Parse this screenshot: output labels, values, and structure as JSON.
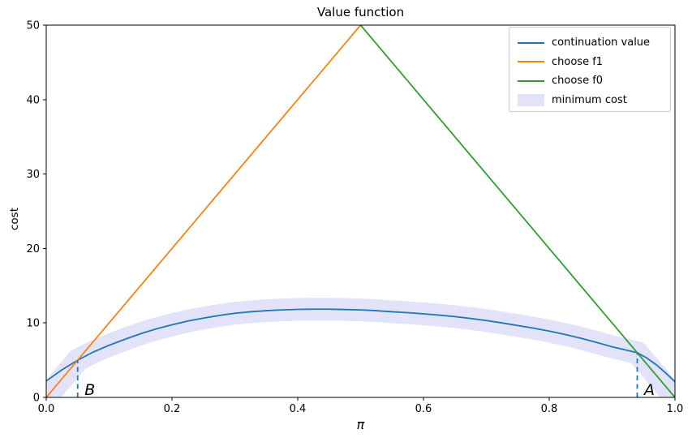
{
  "chart_data": {
    "type": "line",
    "title": "Value function",
    "xlabel": "π",
    "ylabel": "cost",
    "xlim": [
      0,
      1
    ],
    "ylim": [
      0,
      50
    ],
    "grid": false,
    "legend_position": "upper right",
    "x_ticks": [
      0,
      0.2,
      0.4,
      0.6,
      0.8,
      1.0
    ],
    "x_tick_labels": [
      "0.0",
      "0.2",
      "0.4",
      "0.6",
      "0.8",
      "1.0"
    ],
    "y_ticks": [
      0,
      10,
      20,
      30,
      40,
      50
    ],
    "y_tick_labels": [
      "0",
      "10",
      "20",
      "30",
      "40",
      "50"
    ],
    "series": [
      {
        "name": "minimum cost",
        "role": "band",
        "color": "#e2e2f8",
        "x": [
          0,
          0.025,
          0.05,
          0.075,
          0.1,
          0.125,
          0.15,
          0.175,
          0.2,
          0.225,
          0.25,
          0.275,
          0.3,
          0.325,
          0.35,
          0.375,
          0.4,
          0.425,
          0.45,
          0.475,
          0.5,
          0.525,
          0.55,
          0.575,
          0.6,
          0.625,
          0.65,
          0.675,
          0.7,
          0.725,
          0.75,
          0.775,
          0.8,
          0.825,
          0.85,
          0.875,
          0.9,
          0.92,
          0.94,
          0.955,
          0.97,
          0.985,
          1
        ],
        "y": [
          0,
          2.5,
          5.0,
          6.1,
          7.0,
          7.8,
          8.55,
          9.2,
          9.75,
          10.25,
          10.65,
          11.0,
          11.3,
          11.5,
          11.65,
          11.75,
          11.82,
          11.85,
          11.85,
          11.8,
          11.75,
          11.65,
          11.5,
          11.38,
          11.22,
          11.05,
          10.85,
          10.6,
          10.32,
          10.0,
          9.65,
          9.3,
          8.9,
          8.45,
          7.95,
          7.4,
          6.8,
          6.4,
          6.0,
          4.5,
          3.0,
          1.5,
          0
        ]
      },
      {
        "name": "continuation value",
        "role": "line",
        "color": "#1f77b4",
        "x": [
          0,
          0.025,
          0.05,
          0.075,
          0.1,
          0.125,
          0.15,
          0.175,
          0.2,
          0.225,
          0.25,
          0.275,
          0.3,
          0.325,
          0.35,
          0.375,
          0.4,
          0.425,
          0.45,
          0.475,
          0.5,
          0.525,
          0.55,
          0.575,
          0.6,
          0.625,
          0.65,
          0.675,
          0.7,
          0.725,
          0.75,
          0.775,
          0.8,
          0.825,
          0.85,
          0.875,
          0.9,
          0.92,
          0.94,
          0.955,
          0.97,
          0.985,
          1
        ],
        "y": [
          2.2,
          3.7,
          5.0,
          6.1,
          7.0,
          7.8,
          8.55,
          9.2,
          9.75,
          10.25,
          10.65,
          11.0,
          11.3,
          11.5,
          11.65,
          11.75,
          11.82,
          11.85,
          11.85,
          11.8,
          11.75,
          11.65,
          11.5,
          11.38,
          11.22,
          11.05,
          10.85,
          10.6,
          10.32,
          10.0,
          9.65,
          9.3,
          8.9,
          8.45,
          7.95,
          7.4,
          6.8,
          6.4,
          6.0,
          5.3,
          4.4,
          3.3,
          2.1
        ]
      },
      {
        "name": "choose f1",
        "role": "line",
        "color": "#ff7f0e",
        "x": [
          0,
          0.5
        ],
        "y": [
          0,
          50
        ]
      },
      {
        "name": "choose f0",
        "role": "line",
        "color": "#2ca02c",
        "x": [
          0.5,
          1
        ],
        "y": [
          50,
          0
        ]
      }
    ],
    "legend": [
      {
        "label": "continuation value",
        "color": "#1f77b4",
        "swatch": "line"
      },
      {
        "label": "choose f1",
        "color": "#ff7f0e",
        "swatch": "line"
      },
      {
        "label": "choose f0",
        "color": "#2ca02c",
        "swatch": "line"
      },
      {
        "label": "minimum cost",
        "color": "#e2e2f8",
        "swatch": "patch"
      }
    ],
    "annotations": [
      {
        "label": "B",
        "x": 0.05,
        "y_top": 5.0,
        "label_x": 0.061,
        "label_y": 0.35,
        "color": "#1f77b4"
      },
      {
        "label": "A",
        "x": 0.94,
        "y_top": 6.0,
        "label_x": 0.951,
        "label_y": 0.35,
        "color": "#1f77b4"
      }
    ]
  }
}
